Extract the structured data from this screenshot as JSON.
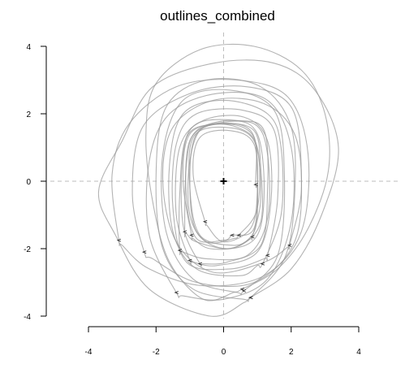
{
  "chart_data": {
    "type": "line",
    "title": "outlines_combined",
    "xlabel": "",
    "ylabel": "",
    "xlim": [
      -4,
      4
    ],
    "ylim": [
      -4,
      4
    ],
    "x_ticks": [
      "-4",
      "-2",
      "0",
      "2",
      "4"
    ],
    "y_ticks": [
      "-4",
      "-2",
      "0",
      "2",
      "4"
    ],
    "x_tick_values": [
      -4,
      -2,
      0,
      2,
      4
    ],
    "y_tick_values": [
      -4,
      -2,
      0,
      2,
      4
    ],
    "reference_lines": {
      "x": 0,
      "y": 0
    },
    "centroid": [
      0,
      0
    ],
    "line_color": "#9a9a9a",
    "grid": false,
    "series": [
      {
        "values": [
          {
            "x": 0.55,
            "y": -3.2
          },
          {
            "x": 1.6,
            "y": -2.6
          },
          {
            "x": 2.5,
            "y": -1.4
          },
          {
            "x": 3.1,
            "y": 0.3
          },
          {
            "x": 3.0,
            "y": 2.0
          },
          {
            "x": 2.3,
            "y": 3.3
          },
          {
            "x": 0.9,
            "y": 4.0
          },
          {
            "x": -0.7,
            "y": 3.9
          },
          {
            "x": -2.0,
            "y": 2.9
          },
          {
            "x": -2.3,
            "y": 1.4
          },
          {
            "x": -2.1,
            "y": -0.6
          },
          {
            "x": -1.6,
            "y": -2.4
          },
          {
            "x": -0.6,
            "y": -3.5
          },
          {
            "x": 0.3,
            "y": -3.3
          }
        ]
      },
      {
        "values": [
          {
            "x": 0.8,
            "y": -3.45
          },
          {
            "x": 2.0,
            "y": -2.6
          },
          {
            "x": 2.9,
            "y": -1.0
          },
          {
            "x": 3.4,
            "y": 1.0
          },
          {
            "x": 2.7,
            "y": 2.7
          },
          {
            "x": 1.5,
            "y": 3.5
          },
          {
            "x": -0.3,
            "y": 3.5
          },
          {
            "x": -2.1,
            "y": 2.8
          },
          {
            "x": -3.0,
            "y": 1.2
          },
          {
            "x": -3.7,
            "y": -0.3
          },
          {
            "x": -3.2,
            "y": -1.6
          },
          {
            "x": -2.2,
            "y": -3.2
          },
          {
            "x": -0.4,
            "y": -4.0
          },
          {
            "x": 0.6,
            "y": -3.6
          }
        ]
      },
      {
        "values": [
          {
            "x": -3.1,
            "y": -1.75
          },
          {
            "x": -3.3,
            "y": 0.2
          },
          {
            "x": -2.8,
            "y": 1.7
          },
          {
            "x": -1.4,
            "y": 2.8
          },
          {
            "x": 0.4,
            "y": 3.0
          },
          {
            "x": 1.9,
            "y": 2.5
          },
          {
            "x": 2.5,
            "y": 0.8
          },
          {
            "x": 2.3,
            "y": -1.5
          },
          {
            "x": 1.2,
            "y": -2.8
          },
          {
            "x": -0.6,
            "y": -3.1
          },
          {
            "x": -2.2,
            "y": -2.6
          },
          {
            "x": -3.0,
            "y": -1.9
          }
        ]
      },
      {
        "values": [
          {
            "x": -2.35,
            "y": -2.1
          },
          {
            "x": -2.7,
            "y": -0.4
          },
          {
            "x": -2.4,
            "y": 1.6
          },
          {
            "x": -1.0,
            "y": 2.6
          },
          {
            "x": 0.7,
            "y": 2.8
          },
          {
            "x": 2.0,
            "y": 2.2
          },
          {
            "x": 2.3,
            "y": 0.3
          },
          {
            "x": 2.1,
            "y": -1.8
          },
          {
            "x": 0.9,
            "y": -3.0
          },
          {
            "x": -0.8,
            "y": -3.0
          },
          {
            "x": -2.1,
            "y": -2.3
          }
        ]
      },
      {
        "values": [
          {
            "x": -1.4,
            "y": -3.3
          },
          {
            "x": -2.2,
            "y": -1.6
          },
          {
            "x": -2.2,
            "y": 0.6
          },
          {
            "x": -1.6,
            "y": 2.0
          },
          {
            "x": -0.2,
            "y": 2.6
          },
          {
            "x": 1.3,
            "y": 2.4
          },
          {
            "x": 2.0,
            "y": 1.0
          },
          {
            "x": 2.0,
            "y": -1.2
          },
          {
            "x": 1.3,
            "y": -2.9
          },
          {
            "x": 0.0,
            "y": -3.5
          },
          {
            "x": -1.2,
            "y": -3.4
          }
        ]
      },
      {
        "values": [
          {
            "x": 0.8,
            "y": -3.45
          },
          {
            "x": 1.8,
            "y": -2.3
          },
          {
            "x": 2.1,
            "y": -0.5
          },
          {
            "x": 2.0,
            "y": 1.6
          },
          {
            "x": 1.1,
            "y": 2.8
          },
          {
            "x": -0.5,
            "y": 3.0
          },
          {
            "x": -1.7,
            "y": 2.2
          },
          {
            "x": -2.0,
            "y": 0.2
          },
          {
            "x": -1.8,
            "y": -2.0
          },
          {
            "x": -0.9,
            "y": -3.2
          },
          {
            "x": 0.6,
            "y": -3.5
          }
        ]
      },
      {
        "values": [
          {
            "x": 0.6,
            "y": -3.25
          },
          {
            "x": 1.6,
            "y": -2.2
          },
          {
            "x": 1.8,
            "y": 0.2
          },
          {
            "x": 1.5,
            "y": 2.1
          },
          {
            "x": 0.2,
            "y": 2.7
          },
          {
            "x": -1.2,
            "y": 2.4
          },
          {
            "x": -1.8,
            "y": 0.8
          },
          {
            "x": -1.7,
            "y": -1.5
          },
          {
            "x": -0.9,
            "y": -2.9
          },
          {
            "x": 0.4,
            "y": -3.3
          }
        ]
      },
      {
        "values": [
          {
            "x": 1.15,
            "y": -2.45
          },
          {
            "x": 1.7,
            "y": -1.0
          },
          {
            "x": 1.7,
            "y": 1.0
          },
          {
            "x": 1.3,
            "y": 2.0
          },
          {
            "x": 0.0,
            "y": 2.4
          },
          {
            "x": -1.2,
            "y": 2.0
          },
          {
            "x": -1.6,
            "y": 0.5
          },
          {
            "x": -1.5,
            "y": -1.5
          },
          {
            "x": -0.8,
            "y": -2.6
          },
          {
            "x": 0.5,
            "y": -2.8
          },
          {
            "x": 1.0,
            "y": -2.5
          }
        ]
      },
      {
        "values": [
          {
            "x": 1.3,
            "y": -2.2
          },
          {
            "x": 1.6,
            "y": -0.5
          },
          {
            "x": 1.5,
            "y": 1.5
          },
          {
            "x": 0.6,
            "y": 2.1
          },
          {
            "x": -0.8,
            "y": 2.0
          },
          {
            "x": -1.4,
            "y": 1.1
          },
          {
            "x": -1.5,
            "y": -0.8
          },
          {
            "x": -1.1,
            "y": -2.4
          },
          {
            "x": 0.2,
            "y": -2.6
          },
          {
            "x": 1.2,
            "y": -2.3
          }
        ]
      },
      {
        "values": [
          {
            "x": -1.0,
            "y": -2.35
          },
          {
            "x": -1.4,
            "y": -1.0
          },
          {
            "x": -1.3,
            "y": 1.0
          },
          {
            "x": -0.6,
            "y": 1.8
          },
          {
            "x": 0.6,
            "y": 1.9
          },
          {
            "x": 1.3,
            "y": 1.2
          },
          {
            "x": 1.4,
            "y": -0.6
          },
          {
            "x": 1.0,
            "y": -2.1
          },
          {
            "x": -0.2,
            "y": -2.5
          },
          {
            "x": -0.9,
            "y": -2.4
          }
        ]
      },
      {
        "values": [
          {
            "x": -0.7,
            "y": -2.45
          },
          {
            "x": -1.2,
            "y": -1.3
          },
          {
            "x": -1.2,
            "y": 0.8
          },
          {
            "x": -0.8,
            "y": 1.7
          },
          {
            "x": 0.4,
            "y": 1.8
          },
          {
            "x": 1.2,
            "y": 1.5
          },
          {
            "x": 1.3,
            "y": -0.3
          },
          {
            "x": 1.1,
            "y": -1.9
          },
          {
            "x": 0.1,
            "y": -2.4
          },
          {
            "x": -0.6,
            "y": -2.45
          }
        ]
      },
      {
        "values": [
          {
            "x": -1.3,
            "y": -2.05
          },
          {
            "x": -1.3,
            "y": -0.4
          },
          {
            "x": -1.1,
            "y": 1.3
          },
          {
            "x": -0.3,
            "y": 1.7
          },
          {
            "x": 0.9,
            "y": 1.7
          },
          {
            "x": 1.3,
            "y": 0.8
          },
          {
            "x": 1.3,
            "y": -1.1
          },
          {
            "x": 0.7,
            "y": -2.2
          },
          {
            "x": -0.5,
            "y": -2.3
          },
          {
            "x": -1.2,
            "y": -2.1
          }
        ]
      },
      {
        "values": [
          {
            "x": -0.95,
            "y": -1.6
          },
          {
            "x": -1.2,
            "y": 0.0
          },
          {
            "x": -1.0,
            "y": 1.4
          },
          {
            "x": 0.0,
            "y": 1.7
          },
          {
            "x": 0.9,
            "y": 1.5
          },
          {
            "x": 1.1,
            "y": 0.4
          },
          {
            "x": 1.1,
            "y": -1.2
          },
          {
            "x": 0.5,
            "y": -1.9
          },
          {
            "x": -0.4,
            "y": -2.0
          },
          {
            "x": -0.9,
            "y": -1.7
          }
        ]
      },
      {
        "values": [
          {
            "x": -1.15,
            "y": -1.5
          },
          {
            "x": -1.1,
            "y": 0.5
          },
          {
            "x": -0.8,
            "y": 1.5
          },
          {
            "x": 0.3,
            "y": 1.8
          },
          {
            "x": 1.0,
            "y": 1.4
          },
          {
            "x": 1.2,
            "y": -0.2
          },
          {
            "x": 1.0,
            "y": -1.6
          },
          {
            "x": 0.2,
            "y": -2.0
          },
          {
            "x": -0.8,
            "y": -1.8
          },
          {
            "x": -1.1,
            "y": -1.55
          }
        ]
      },
      {
        "values": [
          {
            "x": 0.25,
            "y": -1.6
          },
          {
            "x": 0.9,
            "y": -1.4
          },
          {
            "x": 1.0,
            "y": 0.3
          },
          {
            "x": 0.8,
            "y": 1.5
          },
          {
            "x": -0.2,
            "y": 1.7
          },
          {
            "x": -1.0,
            "y": 1.2
          },
          {
            "x": -1.1,
            "y": -0.5
          },
          {
            "x": -0.8,
            "y": -1.7
          },
          {
            "x": 0.0,
            "y": -1.75
          },
          {
            "x": 0.2,
            "y": -1.65
          }
        ]
      },
      {
        "values": [
          {
            "x": 0.45,
            "y": -1.6
          },
          {
            "x": 1.0,
            "y": -0.8
          },
          {
            "x": 1.0,
            "y": 1.0
          },
          {
            "x": 0.4,
            "y": 1.6
          },
          {
            "x": -0.6,
            "y": 1.6
          },
          {
            "x": -1.0,
            "y": 0.6
          },
          {
            "x": -1.0,
            "y": -1.0
          },
          {
            "x": -0.5,
            "y": -1.8
          },
          {
            "x": 0.3,
            "y": -1.7
          }
        ]
      },
      {
        "values": [
          {
            "x": 0.85,
            "y": -1.65
          },
          {
            "x": 1.1,
            "y": -0.5
          },
          {
            "x": 0.9,
            "y": 1.2
          },
          {
            "x": 0.0,
            "y": 1.6
          },
          {
            "x": -0.9,
            "y": 1.3
          },
          {
            "x": -1.0,
            "y": -0.2
          },
          {
            "x": -0.7,
            "y": -1.6
          },
          {
            "x": 0.3,
            "y": -1.9
          },
          {
            "x": 0.8,
            "y": -1.7
          }
        ]
      },
      {
        "values": [
          {
            "x": -0.55,
            "y": -1.2
          },
          {
            "x": -0.9,
            "y": 0.2
          },
          {
            "x": -0.7,
            "y": 1.3
          },
          {
            "x": 0.2,
            "y": 1.5
          },
          {
            "x": 0.9,
            "y": 1.1
          },
          {
            "x": 1.0,
            "y": -0.3
          },
          {
            "x": 0.8,
            "y": -1.4
          },
          {
            "x": 0.0,
            "y": -1.8
          },
          {
            "x": -0.5,
            "y": -1.3
          }
        ]
      },
      {
        "values": [
          {
            "x": 0.95,
            "y": -0.1
          },
          {
            "x": 0.9,
            "y": 1.3
          },
          {
            "x": 0.1,
            "y": 1.7
          },
          {
            "x": -0.8,
            "y": 1.4
          },
          {
            "x": -1.0,
            "y": 0.0
          },
          {
            "x": -0.8,
            "y": -1.5
          },
          {
            "x": 0.1,
            "y": -2.0
          },
          {
            "x": 0.9,
            "y": -1.5
          },
          {
            "x": 1.0,
            "y": -0.2
          }
        ]
      },
      {
        "values": [
          {
            "x": 1.95,
            "y": -1.9
          },
          {
            "x": 2.3,
            "y": -0.3
          },
          {
            "x": 2.1,
            "y": 1.4
          },
          {
            "x": 1.2,
            "y": 2.3
          },
          {
            "x": -0.3,
            "y": 2.4
          },
          {
            "x": -1.5,
            "y": 1.6
          },
          {
            "x": -1.8,
            "y": 0.0
          },
          {
            "x": -1.4,
            "y": -1.8
          },
          {
            "x": -0.3,
            "y": -2.7
          },
          {
            "x": 1.2,
            "y": -2.4
          },
          {
            "x": 1.9,
            "y": -1.95
          }
        ]
      }
    ]
  }
}
